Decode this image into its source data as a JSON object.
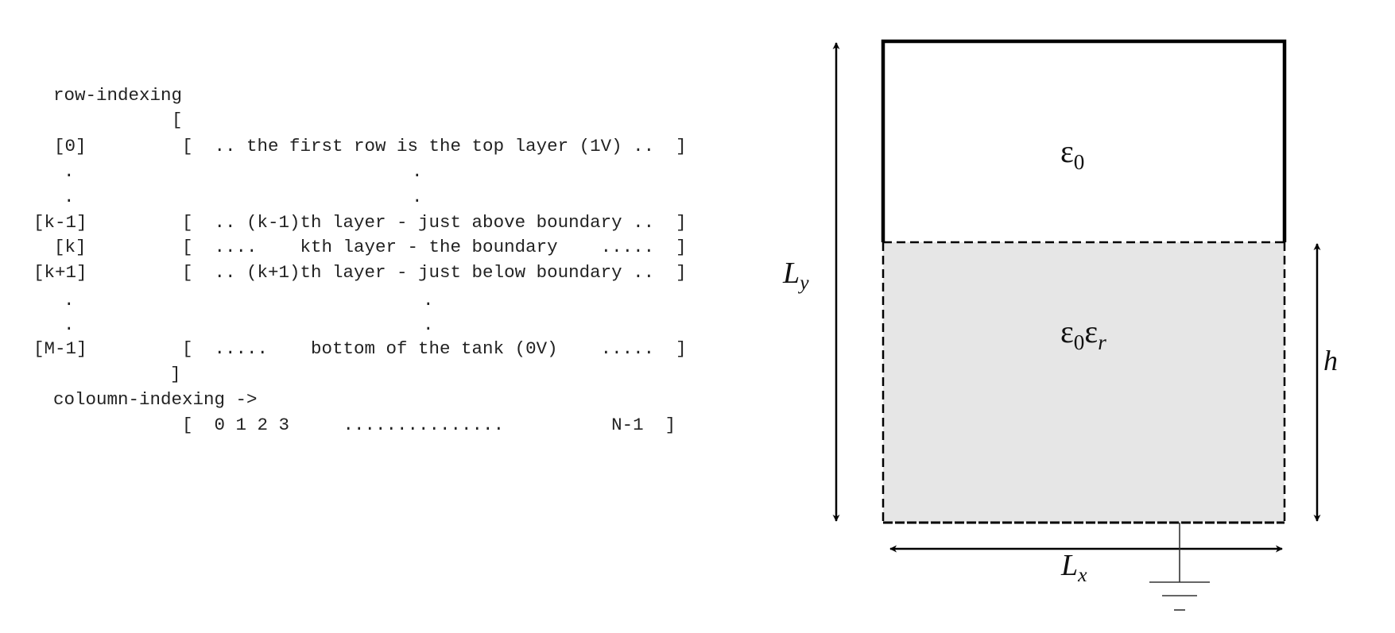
{
  "index_listing": {
    "row_indexing_label": "row-indexing",
    "open_bracket": "[",
    "close_bracket": "]",
    "rows": [
      {
        "index": "[0]",
        "content": "[  .. the first row is the top layer (1V) ..  ]"
      },
      {
        "index": ".",
        "content": "."
      },
      {
        "index": ".",
        "content": "."
      },
      {
        "index": "[k-1]",
        "content": "[  .. (k-1)th layer - just above boundary ..  ]"
      },
      {
        "index": "[k]",
        "content": "[  ....    kth layer - the boundary    .....  ]"
      },
      {
        "index": "[k+1]",
        "content": "[  .. (k+1)th layer - just below boundary ..  ]"
      },
      {
        "index": ".",
        "content": "."
      },
      {
        "index": ".",
        "content": "."
      },
      {
        "index": "[M-1]",
        "content": "[  .....    bottom of the tank (0V)    .....  ]"
      }
    ],
    "column_indexing_label": "coloumn-indexing ->",
    "column_row": "[  0 1 2 3     ...............          N-1  ]"
  },
  "tank": {
    "top_region_symbol": "ε",
    "top_region_sub": "0",
    "bottom_region_symbol_a": "ε",
    "bottom_region_sub_a": "0",
    "bottom_region_symbol_b": "ε",
    "bottom_region_sub_b": "r",
    "height_label_main": "L",
    "height_label_sub": "y",
    "width_label_main": "L",
    "width_label_sub": "x",
    "liquid_height_label": "h",
    "fill_color": "#e6e6e6",
    "border_color": "#000000"
  }
}
